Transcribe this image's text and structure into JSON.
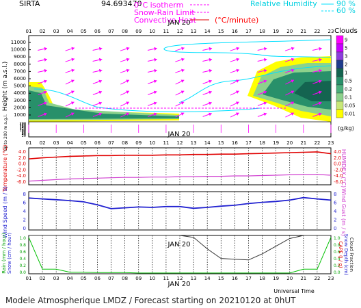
{
  "header": {
    "station": "SIRTA",
    "coords": "94.693470",
    "legend_isotherm": "0°C isotherm",
    "legend_snow_rain": "Snow-Rain Limit",
    "legend_convective": "Convective Heat",
    "legend_convective_unit": "(°C/minute)",
    "legend_rh_label": "Relative Humidity",
    "legend_rh_90": "90 %",
    "legend_rh_60": "60 %"
  },
  "date_label": "JAN 20",
  "hours": [
    "01",
    "02",
    "03",
    "04",
    "05",
    "06",
    "07",
    "08",
    "09",
    "10",
    "11",
    "12",
    "13",
    "14",
    "15",
    "16",
    "17",
    "18",
    "19",
    "20",
    "21",
    "22",
    "23"
  ],
  "clouds_panel": {
    "ylabel": "Height (m a.s.l.)",
    "ylabel_low": "Up to 200 m a.g.l.",
    "yticks_high": [
      "11000",
      "10000",
      "9000",
      "8000",
      "7000",
      "6000",
      "5000",
      "4000",
      "3000",
      "2000",
      "1000"
    ],
    "yticks_low": [
      "200",
      "180",
      "160",
      "140",
      "120",
      "100",
      "80",
      "60",
      "40",
      "20"
    ],
    "colorbar_title": "Clouds",
    "colorbar_ticks": [
      "9",
      "5",
      "3",
      "2",
      "1",
      "0.5",
      "0.2",
      "0.1",
      "0.05",
      "0.01"
    ],
    "colorbar_unit": "(g/kg)",
    "colorbar_colors": [
      "#ff00ff",
      "#c800ff",
      "#8c3cdc",
      "#1e3c8c",
      "#146450",
      "#28906a",
      "#4cb07c",
      "#8cd28c",
      "#c8e878",
      "#ffff00"
    ]
  },
  "temp_panel": {
    "ylabel": "Temperature (°C)",
    "ylabel_right": "HUMIDEX (°C)",
    "yticks": [
      "4.0",
      "2.0",
      "0.0",
      "-2.0",
      "-4.0",
      "-6.0"
    ]
  },
  "wind_panel": {
    "ylabel": "Wind Speed (m / s)",
    "ylabel_right": "Wind Gust (m / s)",
    "yticks": [
      "8",
      "6",
      "4",
      "2",
      "0"
    ]
  },
  "precip_panel": {
    "ylabel_rain": "Rain (mm / hour)",
    "ylabel_snow": "Snow (cm / hour)",
    "ylabel_cape": "CAPE (J / g)",
    "ylabel_snowdepth": "Snow Depth (cm)",
    "ylabel_cloudfrac": "Cloud Fraction",
    "yticks": [
      "1.0",
      "0.8",
      "0.6",
      "0.4",
      "0.2",
      "0.0"
    ]
  },
  "xaxis_title": "Universal Time",
  "footer": "Modele Atmospherique LMDZ / Forecast starting on 20210120 at 0hUT",
  "colors": {
    "temperature": "#e00000",
    "humidex": "#d040d0",
    "wind_speed": "#2020d0",
    "wind_arrow": "#ff00ff",
    "rh_line": "#00e0ff",
    "cloud_fraction": "#303030",
    "rain": "#00c000"
  },
  "chart_data": [
    {
      "type": "line",
      "title": "Temperature",
      "x": [
        "01",
        "02",
        "03",
        "04",
        "05",
        "06",
        "07",
        "08",
        "09",
        "10",
        "11",
        "12",
        "13",
        "14",
        "15",
        "16",
        "17",
        "18",
        "19",
        "20",
        "21",
        "22",
        "23"
      ],
      "series": [
        {
          "name": "Temperature",
          "values": [
            1.0,
            1.3,
            1.5,
            1.7,
            1.8,
            1.9,
            1.9,
            2.0,
            2.0,
            2.0,
            2.1,
            2.1,
            2.2,
            2.2,
            2.3,
            2.3,
            2.4,
            2.5,
            2.6,
            2.7,
            2.8,
            2.9,
            2.4
          ]
        },
        {
          "name": "HUMIDEX",
          "values": [
            -5.0,
            -4.8,
            -4.6,
            -4.4,
            -4.3,
            -4.2,
            -4.1,
            -4.0,
            -4.0,
            -3.9,
            -3.9,
            -3.8,
            -3.8,
            -3.7,
            -3.7,
            -3.6,
            -3.6,
            -3.5,
            -3.4,
            -3.3,
            -3.2,
            -3.2,
            -3.4
          ]
        }
      ],
      "ylim": [
        -6,
        4
      ]
    },
    {
      "type": "line",
      "title": "Wind Speed",
      "x": [
        "01",
        "02",
        "03",
        "04",
        "05",
        "06",
        "07",
        "08",
        "09",
        "10",
        "11",
        "12",
        "13",
        "14",
        "15",
        "16",
        "17",
        "18",
        "19",
        "20",
        "21",
        "22",
        "23"
      ],
      "series": [
        {
          "name": "Wind Speed",
          "values": [
            7.5,
            7.3,
            7.1,
            6.9,
            6.6,
            5.9,
            5.0,
            5.2,
            5.4,
            5.3,
            5.5,
            5.5,
            5.1,
            5.3,
            5.6,
            5.8,
            6.2,
            6.5,
            6.7,
            7.0,
            7.6,
            7.3,
            7.0
          ]
        }
      ],
      "ylim": [
        0,
        9
      ]
    },
    {
      "type": "line",
      "title": "Cloud Fraction / Rain",
      "x": [
        "01",
        "02",
        "03",
        "04",
        "05",
        "06",
        "07",
        "08",
        "09",
        "10",
        "11",
        "12",
        "13",
        "14",
        "15",
        "16",
        "17",
        "18",
        "19",
        "20",
        "21",
        "22",
        "23"
      ],
      "series": [
        {
          "name": "Cloud Fraction",
          "values": [
            1.0,
            1.0,
            1.0,
            1.0,
            1.0,
            1.0,
            1.0,
            1.0,
            1.0,
            1.0,
            1.0,
            1.0,
            0.95,
            0.65,
            0.4,
            0.38,
            0.36,
            0.52,
            0.72,
            0.92,
            1.0,
            1.0,
            1.0
          ]
        },
        {
          "name": "Rain",
          "values": [
            0.95,
            0.12,
            0.12,
            0.04,
            0.04,
            0.03,
            0.03,
            0.03,
            0.02,
            0.02,
            0.02,
            0.02,
            0.02,
            0.02,
            0.02,
            0.02,
            0.02,
            0.02,
            0.02,
            0.02,
            0.12,
            0.12,
            0.95
          ]
        }
      ],
      "ylim": [
        0,
        1.0
      ]
    }
  ]
}
